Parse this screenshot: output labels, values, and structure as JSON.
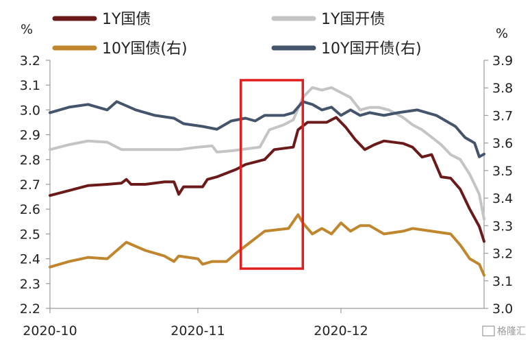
{
  "chart_data": {
    "type": "line",
    "title": "",
    "x_ticks": [
      "2020-10",
      "2020-11",
      "2020-12"
    ],
    "x_range": [
      "2020-10-01",
      "2020-12-31"
    ],
    "y_left": {
      "unit": "%",
      "min": 2.2,
      "max": 3.2,
      "ticks": [
        "3.2",
        "3.1",
        "3.0",
        "2.9",
        "2.8",
        "2.7",
        "2.6",
        "2.5",
        "2.4",
        "2.3",
        "2.2"
      ]
    },
    "y_right": {
      "unit": "%",
      "min": 3.0,
      "max": 3.9,
      "ticks": [
        "3.9",
        "3.8",
        "3.7",
        "3.6",
        "3.5",
        "3.4",
        "3.3",
        "3.2",
        "3.1",
        "3.0"
      ]
    },
    "grid": false,
    "legend_position": "top",
    "highlight": {
      "from": "2020-11-10",
      "to": "2020-11-23",
      "color": "#e11f1f"
    },
    "series": [
      {
        "name": "1Y国债",
        "axis": "left",
        "color": "#6b1a1a",
        "points": [
          [
            "2020-10-01",
            2.655
          ],
          [
            "2020-10-05",
            2.675
          ],
          [
            "2020-10-09",
            2.695
          ],
          [
            "2020-10-13",
            2.7
          ],
          [
            "2020-10-16",
            2.705
          ],
          [
            "2020-10-17",
            2.72
          ],
          [
            "2020-10-18",
            2.7
          ],
          [
            "2020-10-21",
            2.7
          ],
          [
            "2020-10-25",
            2.71
          ],
          [
            "2020-10-27",
            2.71
          ],
          [
            "2020-10-28",
            2.66
          ],
          [
            "2020-10-29",
            2.69
          ],
          [
            "2020-11-02",
            2.69
          ],
          [
            "2020-11-03",
            2.72
          ],
          [
            "2020-11-05",
            2.73
          ],
          [
            "2020-11-09",
            2.76
          ],
          [
            "2020-11-11",
            2.78
          ],
          [
            "2020-11-13",
            2.79
          ],
          [
            "2020-11-15",
            2.8
          ],
          [
            "2020-11-17",
            2.84
          ],
          [
            "2020-11-21",
            2.85
          ],
          [
            "2020-11-22",
            2.92
          ],
          [
            "2020-11-24",
            2.95
          ],
          [
            "2020-11-28",
            2.95
          ],
          [
            "2020-11-30",
            2.97
          ],
          [
            "2020-12-02",
            2.93
          ],
          [
            "2020-12-04",
            2.88
          ],
          [
            "2020-12-06",
            2.84
          ],
          [
            "2020-12-08",
            2.86
          ],
          [
            "2020-12-10",
            2.875
          ],
          [
            "2020-12-14",
            2.865
          ],
          [
            "2020-12-16",
            2.85
          ],
          [
            "2020-12-18",
            2.81
          ],
          [
            "2020-12-20",
            2.82
          ],
          [
            "2020-12-22",
            2.73
          ],
          [
            "2020-12-24",
            2.725
          ],
          [
            "2020-12-26",
            2.68
          ],
          [
            "2020-12-28",
            2.6
          ],
          [
            "2020-12-30",
            2.53
          ],
          [
            "2020-12-31",
            2.47
          ]
        ]
      },
      {
        "name": "1Y国开债",
        "axis": "left",
        "color": "#c4c4c4",
        "points": [
          [
            "2020-10-01",
            2.84
          ],
          [
            "2020-10-05",
            2.86
          ],
          [
            "2020-10-09",
            2.875
          ],
          [
            "2020-10-13",
            2.87
          ],
          [
            "2020-10-16",
            2.84
          ],
          [
            "2020-10-20",
            2.84
          ],
          [
            "2020-10-24",
            2.84
          ],
          [
            "2020-10-28",
            2.84
          ],
          [
            "2020-11-01",
            2.85
          ],
          [
            "2020-11-04",
            2.855
          ],
          [
            "2020-11-05",
            2.83
          ],
          [
            "2020-11-08",
            2.835
          ],
          [
            "2020-11-12",
            2.845
          ],
          [
            "2020-11-14",
            2.85
          ],
          [
            "2020-11-16",
            2.92
          ],
          [
            "2020-11-19",
            2.94
          ],
          [
            "2020-11-21",
            2.96
          ],
          [
            "2020-11-23",
            3.05
          ],
          [
            "2020-11-25",
            3.09
          ],
          [
            "2020-11-27",
            3.08
          ],
          [
            "2020-11-29",
            3.09
          ],
          [
            "2020-12-01",
            3.07
          ],
          [
            "2020-12-03",
            3.05
          ],
          [
            "2020-12-05",
            3.0
          ],
          [
            "2020-12-07",
            3.01
          ],
          [
            "2020-12-09",
            3.01
          ],
          [
            "2020-12-11",
            3.0
          ],
          [
            "2020-12-14",
            2.97
          ],
          [
            "2020-12-16",
            2.94
          ],
          [
            "2020-12-18",
            2.92
          ],
          [
            "2020-12-20",
            2.89
          ],
          [
            "2020-12-22",
            2.86
          ],
          [
            "2020-12-24",
            2.82
          ],
          [
            "2020-12-26",
            2.8
          ],
          [
            "2020-12-28",
            2.74
          ],
          [
            "2020-12-30",
            2.66
          ],
          [
            "2020-12-31",
            2.56
          ]
        ]
      },
      {
        "name": "10Y国债(右)",
        "axis": "right",
        "color": "#c0862e",
        "points": [
          [
            "2020-10-01",
            3.15
          ],
          [
            "2020-10-05",
            3.17
          ],
          [
            "2020-10-09",
            3.185
          ],
          [
            "2020-10-13",
            3.18
          ],
          [
            "2020-10-17",
            3.24
          ],
          [
            "2020-10-21",
            3.21
          ],
          [
            "2020-10-25",
            3.19
          ],
          [
            "2020-10-27",
            3.17
          ],
          [
            "2020-10-28",
            3.19
          ],
          [
            "2020-11-01",
            3.18
          ],
          [
            "2020-11-02",
            3.16
          ],
          [
            "2020-11-04",
            3.17
          ],
          [
            "2020-11-07",
            3.17
          ],
          [
            "2020-11-09",
            3.2
          ],
          [
            "2020-11-12",
            3.24
          ],
          [
            "2020-11-15",
            3.28
          ],
          [
            "2020-11-20",
            3.29
          ],
          [
            "2020-11-22",
            3.34
          ],
          [
            "2020-11-23",
            3.31
          ],
          [
            "2020-11-25",
            3.27
          ],
          [
            "2020-11-27",
            3.29
          ],
          [
            "2020-11-29",
            3.27
          ],
          [
            "2020-12-01",
            3.31
          ],
          [
            "2020-12-03",
            3.28
          ],
          [
            "2020-12-05",
            3.3
          ],
          [
            "2020-12-07",
            3.3
          ],
          [
            "2020-12-10",
            3.27
          ],
          [
            "2020-12-14",
            3.28
          ],
          [
            "2020-12-16",
            3.29
          ],
          [
            "2020-12-20",
            3.28
          ],
          [
            "2020-12-24",
            3.27
          ],
          [
            "2020-12-26",
            3.23
          ],
          [
            "2020-12-28",
            3.18
          ],
          [
            "2020-12-30",
            3.16
          ],
          [
            "2020-12-31",
            3.12
          ]
        ]
      },
      {
        "name": "10Y国开债(右)",
        "axis": "right",
        "color": "#44546a",
        "points": [
          [
            "2020-10-01",
            3.71
          ],
          [
            "2020-10-05",
            3.73
          ],
          [
            "2020-10-09",
            3.74
          ],
          [
            "2020-10-13",
            3.72
          ],
          [
            "2020-10-15",
            3.75
          ],
          [
            "2020-10-19",
            3.72
          ],
          [
            "2020-10-23",
            3.7
          ],
          [
            "2020-10-27",
            3.69
          ],
          [
            "2020-10-29",
            3.67
          ],
          [
            "2020-11-02",
            3.66
          ],
          [
            "2020-11-05",
            3.65
          ],
          [
            "2020-11-08",
            3.68
          ],
          [
            "2020-11-11",
            3.69
          ],
          [
            "2020-11-13",
            3.68
          ],
          [
            "2020-11-15",
            3.7
          ],
          [
            "2020-11-19",
            3.7
          ],
          [
            "2020-11-21",
            3.71
          ],
          [
            "2020-11-23",
            3.75
          ],
          [
            "2020-11-25",
            3.74
          ],
          [
            "2020-11-27",
            3.72
          ],
          [
            "2020-11-29",
            3.73
          ],
          [
            "2020-12-01",
            3.7
          ],
          [
            "2020-12-03",
            3.72
          ],
          [
            "2020-12-05",
            3.7
          ],
          [
            "2020-12-07",
            3.71
          ],
          [
            "2020-12-10",
            3.7
          ],
          [
            "2020-12-13",
            3.71
          ],
          [
            "2020-12-17",
            3.72
          ],
          [
            "2020-12-21",
            3.7
          ],
          [
            "2020-12-23",
            3.68
          ],
          [
            "2020-12-25",
            3.66
          ],
          [
            "2020-12-27",
            3.62
          ],
          [
            "2020-12-29",
            3.6
          ],
          [
            "2020-12-30",
            3.55
          ],
          [
            "2020-12-31",
            3.56
          ]
        ]
      }
    ]
  },
  "watermark": "格隆汇"
}
